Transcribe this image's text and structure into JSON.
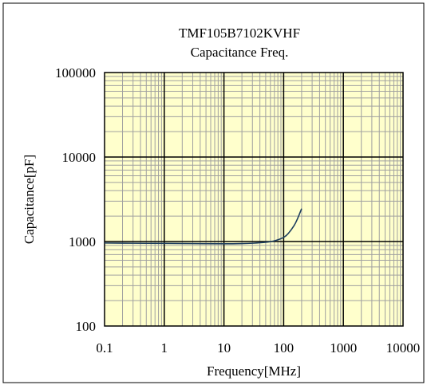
{
  "chart_data": {
    "type": "line",
    "title": "TMF105B7102KVHF",
    "subtitle": "Capacitance Freq.",
    "xlabel": "Frequency[MHz]",
    "ylabel": "Capacitance[pF]",
    "x_scale": "log",
    "y_scale": "log",
    "xlim": [
      0.1,
      10000
    ],
    "ylim": [
      100,
      100000
    ],
    "x_ticks": [
      "0.1",
      "1",
      "10",
      "100",
      "1000",
      "10000"
    ],
    "y_ticks": [
      "100",
      "1000",
      "10000",
      "100000"
    ],
    "grid": true,
    "legend": "none",
    "series": [
      {
        "color": "#1f3f5f",
        "x": [
          0.1,
          0.3,
          1,
          3,
          10,
          20,
          30,
          50,
          70,
          100,
          120,
          150,
          170,
          200
        ],
        "y": [
          960,
          955,
          950,
          945,
          940,
          945,
          955,
          980,
          1020,
          1120,
          1250,
          1550,
          1850,
          2450
        ]
      }
    ],
    "colors": {
      "plot_background": "#ffffcc",
      "minor_grid": "#a0a0a0",
      "major_grid": "#000000"
    }
  }
}
